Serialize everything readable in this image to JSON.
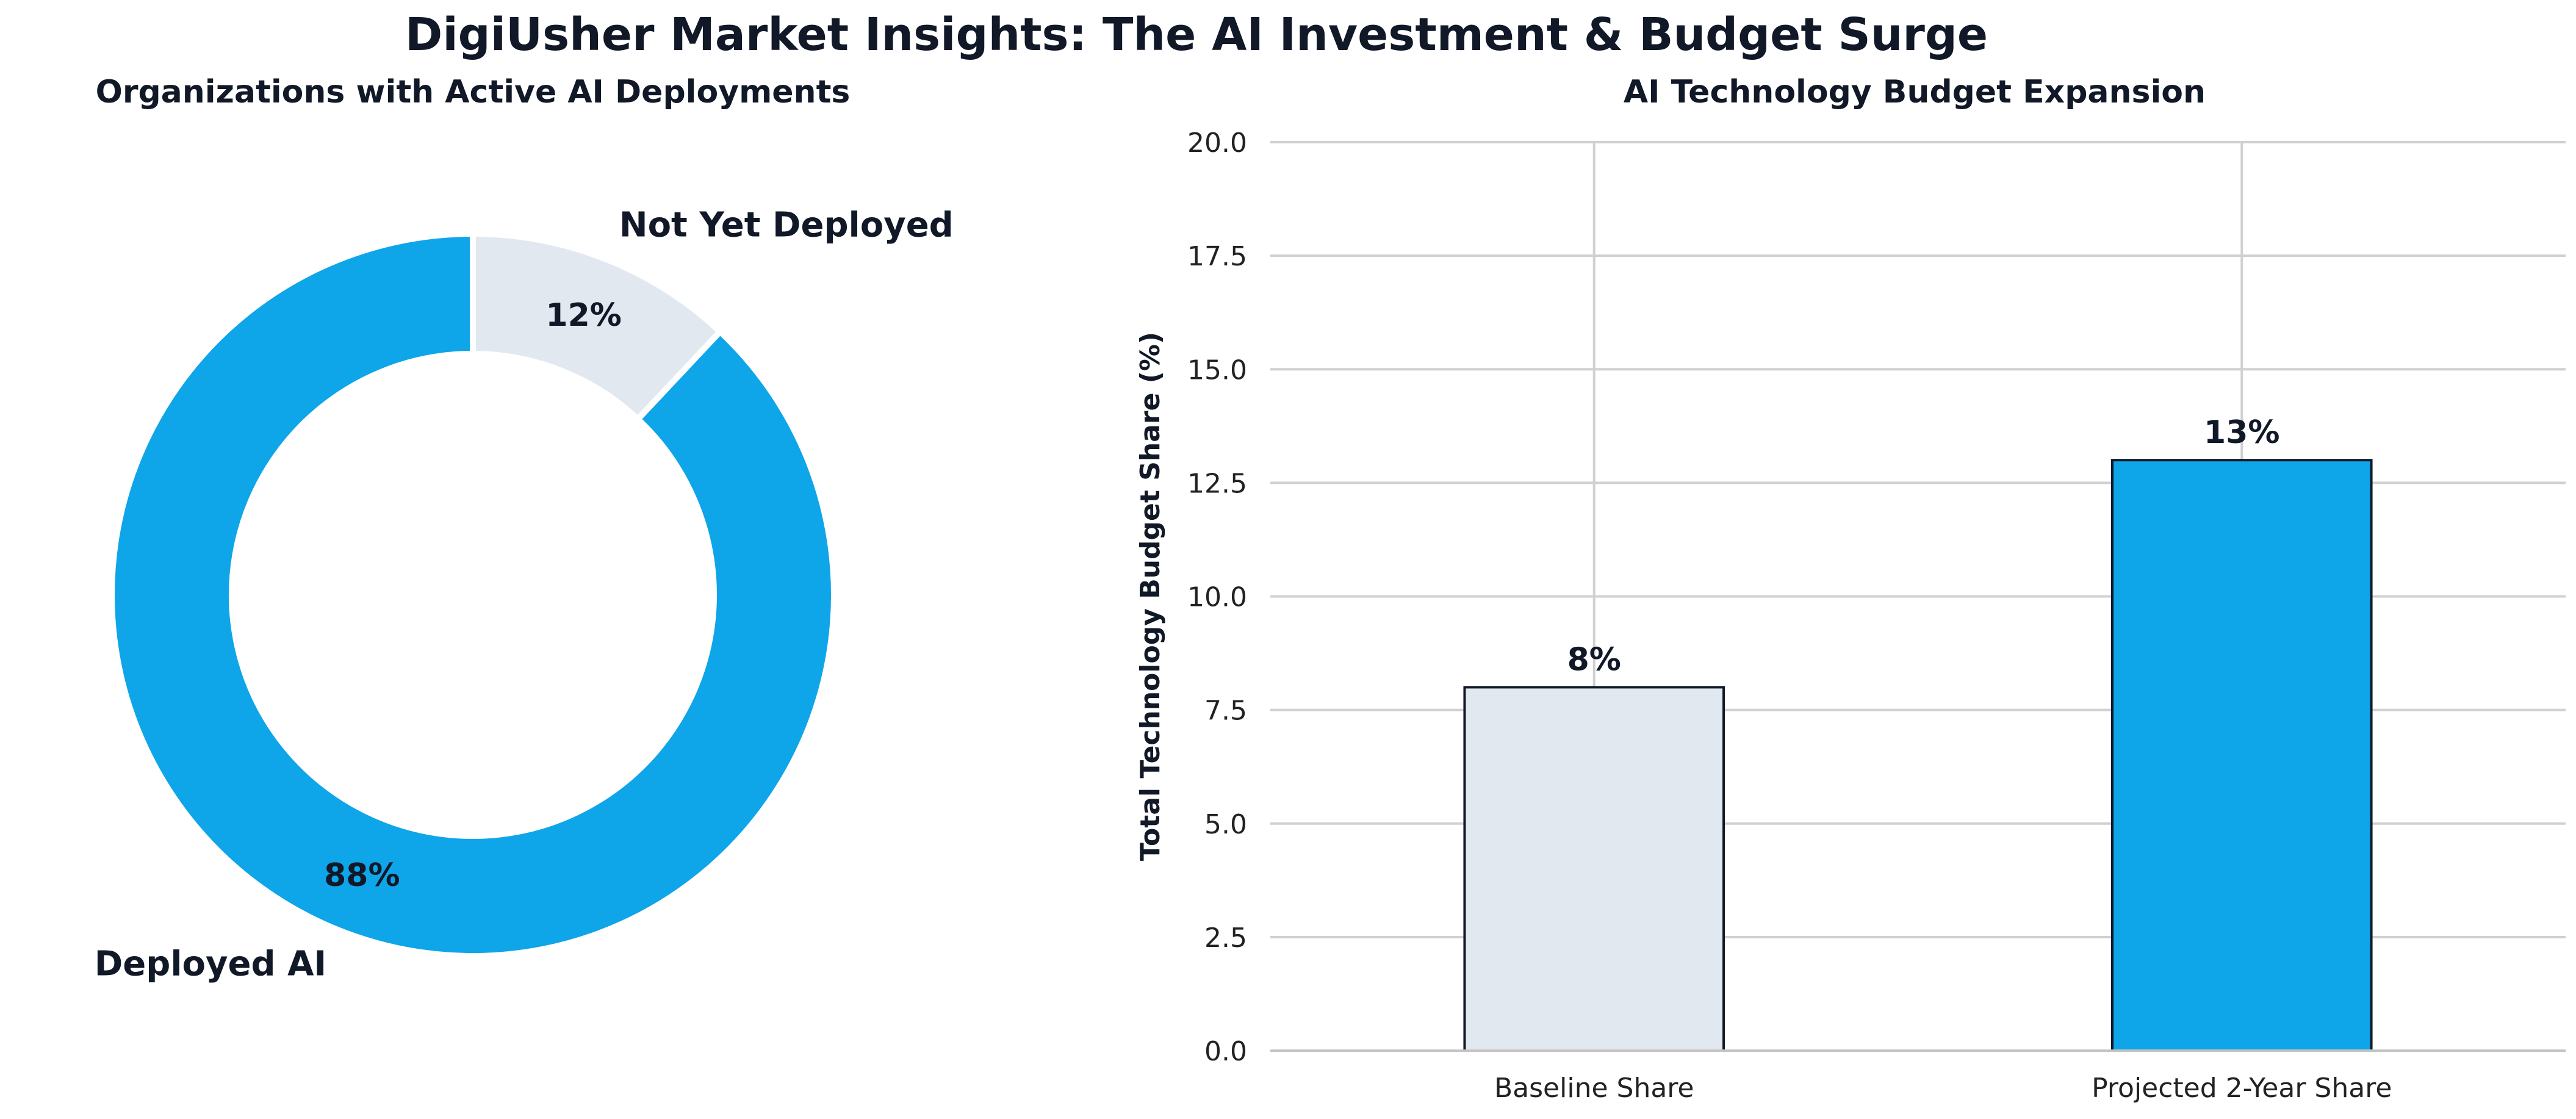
{
  "figure_title": "DigiUsher Market Insights: The AI Investment & Budget Surge",
  "chart_data": [
    {
      "type": "pie",
      "style": "donut",
      "title": "Organizations with Active AI Deployments",
      "slices": [
        {
          "label": "Not Yet Deployed",
          "value": 12,
          "display": "12%",
          "color": "#e2e8f0"
        },
        {
          "label": "Deployed AI",
          "value": 88,
          "display": "88%",
          "color": "#0ea5e9"
        }
      ]
    },
    {
      "type": "bar",
      "title": "AI Technology Budget Expansion",
      "xlabel": "",
      "ylabel": "Total Technology Budget Share (%)",
      "categories": [
        "Baseline Share",
        "Projected 2-Year Share"
      ],
      "values": [
        8,
        13
      ],
      "value_labels": [
        "8%",
        "13%"
      ],
      "colors": [
        "#e2e8f0",
        "#0ea5e9"
      ],
      "ylim": [
        0,
        20
      ],
      "yticks": [
        0,
        2.5,
        5,
        7.5,
        10,
        12.5,
        15,
        17.5,
        20
      ],
      "ytick_labels": [
        "0.0",
        "2.5",
        "5.0",
        "7.5",
        "10.0",
        "12.5",
        "15.0",
        "17.5",
        "20.0"
      ],
      "grid": true
    }
  ]
}
